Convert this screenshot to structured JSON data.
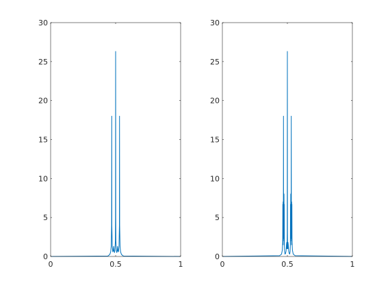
{
  "chart_data": [
    {
      "type": "line",
      "title": "",
      "xlabel": "",
      "ylabel": "",
      "xlim": [
        0,
        1
      ],
      "ylim": [
        0,
        30
      ],
      "grid": false,
      "x_ticks": [
        0,
        0.5,
        1
      ],
      "x_tick_labels": [
        "0",
        "0.5",
        "1"
      ],
      "y_ticks": [
        0,
        5,
        10,
        15,
        20,
        25,
        30
      ],
      "y_tick_labels": [
        "0",
        "5",
        "10",
        "15",
        "20",
        "25",
        "30"
      ],
      "series": [
        {
          "color": "#0072BD",
          "x": [
            0,
            0.44,
            0.455,
            0.462,
            0.466,
            0.469,
            0.47,
            0.471,
            0.474,
            0.478,
            0.482,
            0.485,
            0.488,
            0.491,
            0.494,
            0.496,
            0.498,
            0.499,
            0.5,
            0.501,
            0.502,
            0.504,
            0.506,
            0.509,
            0.512,
            0.515,
            0.518,
            0.522,
            0.526,
            0.529,
            0.53,
            0.531,
            0.534,
            0.538,
            0.545,
            0.56,
            1
          ],
          "y": [
            0,
            0.05,
            0.25,
            0.6,
            1.3,
            4,
            18,
            4,
            1.3,
            0.6,
            0.7,
            1.3,
            0.7,
            0.5,
            0.7,
            1.3,
            2,
            5,
            26.3,
            5,
            2,
            1.3,
            0.7,
            0.5,
            0.7,
            1.3,
            0.7,
            0.6,
            1.3,
            4,
            18,
            4,
            1.3,
            0.6,
            0.25,
            0.05,
            0
          ]
        }
      ]
    },
    {
      "type": "line",
      "title": "",
      "xlabel": "",
      "ylabel": "",
      "xlim": [
        0,
        1
      ],
      "ylim": [
        0,
        30
      ],
      "grid": false,
      "x_ticks": [
        0,
        0.5,
        1
      ],
      "x_tick_labels": [
        "0",
        "0.5",
        "1"
      ],
      "y_ticks": [
        0,
        5,
        10,
        15,
        20,
        25,
        30
      ],
      "y_tick_labels": [
        "0",
        "5",
        "10",
        "15",
        "20",
        "25",
        "30"
      ],
      "series": [
        {
          "color": "#0072BD",
          "x": [
            0,
            0.44,
            0.455,
            0.461,
            0.464,
            0.465,
            0.466,
            0.467,
            0.468,
            0.469,
            0.47,
            0.471,
            0.472,
            0.473,
            0.474,
            0.475,
            0.476,
            0.477,
            0.479,
            0.482,
            0.486,
            0.49,
            0.493,
            0.495,
            0.496,
            0.497,
            0.498,
            0.499,
            0.5,
            0.501,
            0.502,
            0.503,
            0.504,
            0.505,
            0.507,
            0.51,
            0.514,
            0.518,
            0.521,
            0.523,
            0.524,
            0.525,
            0.526,
            0.527,
            0.528,
            0.529,
            0.53,
            0.531,
            0.532,
            0.533,
            0.534,
            0.535,
            0.536,
            0.539,
            0.545,
            0.56,
            1
          ],
          "y": [
            0,
            0.1,
            0.3,
            0.8,
            1.8,
            6.7,
            1.5,
            7,
            2,
            4,
            18,
            5,
            8.1,
            2.3,
            8,
            1.5,
            6.7,
            1.5,
            0.6,
            0.3,
            0.4,
            0.7,
            1.5,
            1.8,
            1,
            1.8,
            1,
            3,
            26.3,
            3,
            1,
            1.8,
            1,
            1.8,
            1.5,
            0.7,
            0.4,
            0.3,
            0.6,
            1.5,
            6.7,
            1.5,
            8,
            2.3,
            8.1,
            5,
            18,
            4,
            2,
            7,
            1.5,
            6.7,
            1.8,
            0.8,
            0.3,
            0.1,
            0
          ]
        }
      ]
    }
  ]
}
